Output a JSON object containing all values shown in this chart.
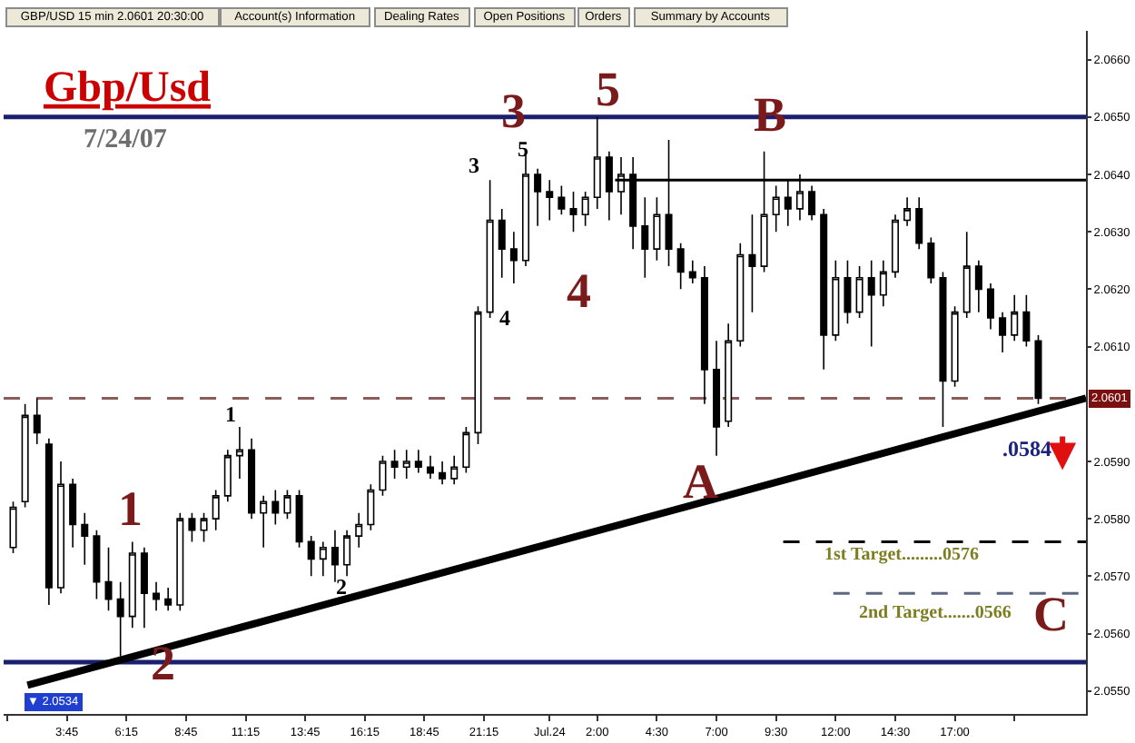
{
  "chart_data": {
    "type": "candlestick",
    "title": "Gbp/Usd",
    "subtitle": "7/24/07",
    "color": "#000000",
    "x": [
      "--07-23T01:30",
      "--07-23T02:00",
      "--07-23T02:30",
      "--07-23T03:00",
      "--07-23T03:30",
      "--07-23T04:00",
      "--07-23T04:30",
      "--07-23T05:00",
      "--07-23T05:30",
      "--07-23T06:00",
      "--07-23T06:30",
      "--07-23T07:00",
      "--07-23T07:30",
      "--07-23T08:00",
      "--07-23T08:30",
      "--07-23T09:00",
      "--07-23T09:30",
      "--07-23T10:00",
      "--07-23T10:30",
      "--07-23T11:00",
      "--07-23T11:30",
      "--07-23T12:00",
      "--07-23T12:30",
      "--07-23T13:00",
      "--07-23T13:30",
      "--07-23T14:00",
      "--07-23T14:30",
      "--07-23T15:00",
      "--07-23T15:30",
      "--07-23T16:00",
      "--07-23T16:30",
      "--07-23T17:00",
      "--07-23T17:30",
      "--07-23T18:00",
      "--07-23T18:30",
      "--07-23T19:00",
      "--07-23T19:30",
      "--07-23T20:00",
      "--07-23T20:30",
      "--07-23T21:00",
      "--07-23T21:30",
      "--07-23T22:00",
      "--07-23T22:30",
      "--07-23T23:00",
      "--07-23T23:30",
      "--07-24T00:00",
      "--07-24T00:30",
      "--07-24T01:00",
      "--07-24T01:30",
      "--07-24T02:00",
      "--07-24T02:30",
      "--07-24T03:00",
      "--07-24T03:30",
      "--07-24T04:00",
      "--07-24T04:30",
      "--07-24T05:00",
      "--07-24T05:30",
      "--07-24T06:00",
      "--07-24T06:30",
      "--07-24T07:00",
      "--07-24T07:30",
      "--07-24T08:00",
      "--07-24T08:30",
      "--07-24T09:00",
      "--07-24T09:30",
      "--07-24T10:00",
      "--07-24T10:30",
      "--07-24T11:00",
      "--07-24T11:30",
      "--07-24T12:00",
      "--07-24T12:30",
      "--07-24T13:00",
      "--07-24T13:30",
      "--07-24T14:00",
      "--07-24T14:30",
      "--07-24T15:00",
      "--07-24T15:30",
      "--07-24T16:00",
      "--07-24T16:30",
      "--07-24T17:00",
      "--07-24T17:30",
      "--07-24T18:00",
      "--07-24T18:30",
      "--07-24T19:00",
      "--07-24T19:30",
      "--07-24T20:00",
      "--07-24T20:30"
    ],
    "ohlc": [
      [
        2.0575,
        2.0583,
        2.0574,
        2.0582
      ],
      [
        2.0583,
        2.06,
        2.0582,
        2.0598
      ],
      [
        2.0598,
        2.0601,
        2.0593,
        2.0595
      ],
      [
        2.0593,
        2.0594,
        2.0565,
        2.0568
      ],
      [
        2.0568,
        2.059,
        2.0567,
        2.0586
      ],
      [
        2.0586,
        2.0587,
        2.0575,
        2.0579
      ],
      [
        2.0579,
        2.0581,
        2.0572,
        2.0577
      ],
      [
        2.0577,
        2.0578,
        2.0566,
        2.0569
      ],
      [
        2.0569,
        2.0575,
        2.0564,
        2.0566
      ],
      [
        2.0566,
        2.0569,
        2.0556,
        2.0563
      ],
      [
        2.0563,
        2.0576,
        2.0561,
        2.0574
      ],
      [
        2.0574,
        2.0575,
        2.0561,
        2.0567
      ],
      [
        2.0567,
        2.0569,
        2.0564,
        2.0566
      ],
      [
        2.0566,
        2.0568,
        2.0564,
        2.0565
      ],
      [
        2.0565,
        2.0581,
        2.0564,
        2.058
      ],
      [
        2.058,
        2.0581,
        2.0576,
        2.0578
      ],
      [
        2.0578,
        2.0581,
        2.0576,
        2.058
      ],
      [
        2.058,
        2.0585,
        2.0578,
        2.0584
      ],
      [
        2.0584,
        2.0592,
        2.0583,
        2.0591
      ],
      [
        2.0591,
        2.0596,
        2.0587,
        2.0592
      ],
      [
        2.0592,
        2.0594,
        2.058,
        2.0581
      ],
      [
        2.0581,
        2.0584,
        2.0575,
        2.0583
      ],
      [
        2.0583,
        2.0585,
        2.0579,
        2.0581
      ],
      [
        2.0581,
        2.0585,
        2.058,
        2.0584
      ],
      [
        2.0584,
        2.0585,
        2.0575,
        2.0576
      ],
      [
        2.0576,
        2.0577,
        2.057,
        2.0573
      ],
      [
        2.0573,
        2.0576,
        2.057,
        2.0575
      ],
      [
        2.0575,
        2.0578,
        2.0569,
        2.0572
      ],
      [
        2.0572,
        2.0578,
        2.057,
        2.0577
      ],
      [
        2.0577,
        2.0581,
        2.0575,
        2.0579
      ],
      [
        2.0579,
        2.0586,
        2.0578,
        2.0585
      ],
      [
        2.0585,
        2.0591,
        2.0584,
        2.059
      ],
      [
        2.059,
        2.0592,
        2.0587,
        2.0589
      ],
      [
        2.0589,
        2.0592,
        2.0587,
        2.059
      ],
      [
        2.059,
        2.0592,
        2.0588,
        2.0589
      ],
      [
        2.0589,
        2.0591,
        2.0587,
        2.0588
      ],
      [
        2.0588,
        2.059,
        2.0586,
        2.0587
      ],
      [
        2.0587,
        2.0591,
        2.0586,
        2.0589
      ],
      [
        2.0589,
        2.0596,
        2.0588,
        2.0595
      ],
      [
        2.0595,
        2.0617,
        2.0593,
        2.0616
      ],
      [
        2.0616,
        2.0639,
        2.0615,
        2.0632
      ],
      [
        2.0632,
        2.0634,
        2.0622,
        2.0627
      ],
      [
        2.0627,
        2.063,
        2.0621,
        2.0625
      ],
      [
        2.0625,
        2.0644,
        2.0624,
        2.064
      ],
      [
        2.064,
        2.0641,
        2.0631,
        2.0637
      ],
      [
        2.0637,
        2.0639,
        2.0632,
        2.0636
      ],
      [
        2.0636,
        2.0638,
        2.0633,
        2.0634
      ],
      [
        2.0634,
        2.0637,
        2.063,
        2.0633
      ],
      [
        2.0633,
        2.0637,
        2.0631,
        2.0636
      ],
      [
        2.0636,
        2.065,
        2.0634,
        2.0643
      ],
      [
        2.0643,
        2.0644,
        2.0632,
        2.0637
      ],
      [
        2.0637,
        2.0643,
        2.0633,
        2.064
      ],
      [
        2.064,
        2.0643,
        2.0627,
        2.0631
      ],
      [
        2.0631,
        2.0636,
        2.0622,
        2.0627
      ],
      [
        2.0627,
        2.0636,
        2.0625,
        2.0633
      ],
      [
        2.0633,
        2.0646,
        2.0624,
        2.0627
      ],
      [
        2.0627,
        2.0628,
        2.062,
        2.0623
      ],
      [
        2.0623,
        2.0625,
        2.0621,
        2.0622
      ],
      [
        2.0622,
        2.0624,
        2.06,
        2.0606
      ],
      [
        2.0606,
        2.0611,
        2.0591,
        2.0596
      ],
      [
        2.0597,
        2.0614,
        2.0596,
        2.0611
      ],
      [
        2.0611,
        2.0628,
        2.061,
        2.0626
      ],
      [
        2.0626,
        2.0633,
        2.0616,
        2.0624
      ],
      [
        2.0624,
        2.0644,
        2.0623,
        2.0633
      ],
      [
        2.0633,
        2.0638,
        2.063,
        2.0636
      ],
      [
        2.0636,
        2.0639,
        2.0631,
        2.0634
      ],
      [
        2.0634,
        2.064,
        2.0632,
        2.0637
      ],
      [
        2.0637,
        2.0638,
        2.0632,
        2.0633
      ],
      [
        2.0633,
        2.0634,
        2.0606,
        2.0612
      ],
      [
        2.0612,
        2.0625,
        2.0611,
        2.0622
      ],
      [
        2.0622,
        2.0625,
        2.0614,
        2.0616
      ],
      [
        2.0616,
        2.0624,
        2.0615,
        2.0622
      ],
      [
        2.0622,
        2.0625,
        2.061,
        2.0619
      ],
      [
        2.0619,
        2.0625,
        2.0617,
        2.0623
      ],
      [
        2.0623,
        2.0633,
        2.0622,
        2.0632
      ],
      [
        2.0632,
        2.0636,
        2.0631,
        2.0634
      ],
      [
        2.0634,
        2.0636,
        2.0627,
        2.0628
      ],
      [
        2.0628,
        2.0629,
        2.0621,
        2.0622
      ],
      [
        2.0622,
        2.0623,
        2.0596,
        2.0604
      ],
      [
        2.0604,
        2.0617,
        2.0603,
        2.0616
      ],
      [
        2.0616,
        2.063,
        2.0615,
        2.0624
      ],
      [
        2.0624,
        2.0625,
        2.0616,
        2.062
      ],
      [
        2.062,
        2.0621,
        2.0613,
        2.0615
      ],
      [
        2.0615,
        2.0616,
        2.0609,
        2.0612
      ],
      [
        2.0612,
        2.0619,
        2.0611,
        2.0616
      ],
      [
        2.0616,
        2.0619,
        2.061,
        2.0611
      ],
      [
        2.0611,
        2.0612,
        2.06,
        2.0601
      ]
    ],
    "series": [
      {
        "type": "line",
        "color": "#000000",
        "line_style": "solid",
        "x": [
          "--07-23T02:06",
          "--07-24T22:30"
        ],
        "values": [
          2.0551,
          2.0601
        ]
      },
      {
        "type": "line",
        "color": "#000000",
        "line_style": "solid",
        "x": [
          "--07-24T02:45",
          "--07-24T22:30"
        ],
        "values": [
          2.0639,
          2.0639
        ]
      },
      {
        "type": "line",
        "color": "#000000",
        "line_style": "dashed",
        "x": [
          "--07-24T09:48",
          "--07-24T22:30"
        ],
        "values": [
          2.0576,
          2.0576
        ]
      },
      {
        "type": "line",
        "color": "#5c6780",
        "line_style": "dashed",
        "x": [
          "--07-24T11:54",
          "--07-24T22:30"
        ],
        "values": [
          2.0567,
          2.0567
        ]
      }
    ],
    "ref_lines": [
      {
        "axis": "y",
        "value": 2.065,
        "color": "#1a1f6e"
      },
      {
        "axis": "y",
        "value": 2.0555,
        "color": "#1a1f6e"
      },
      {
        "axis": "y",
        "value": 2.0601,
        "label": "2.0601",
        "color": "#8a5c5c",
        "line_style": "dashed"
      }
    ],
    "xlim": [
      "--07-23T01:06",
      "--07-24T22:30"
    ],
    "xticks": [
      {
        "value": "--07-23T01:15",
        "label": null
      },
      {
        "value": "--07-23T03:45",
        "label": "3:45"
      },
      {
        "value": "--07-23T06:15",
        "label": "6:15"
      },
      {
        "value": "--07-23T08:45",
        "label": "8:45"
      },
      {
        "value": "--07-23T11:15",
        "label": "11:15"
      },
      {
        "value": "--07-23T13:45",
        "label": "13:45"
      },
      {
        "value": "--07-23T16:15",
        "label": "16:15"
      },
      {
        "value": "--07-23T18:45",
        "label": "18:45"
      },
      {
        "value": "--07-23T21:15",
        "label": "21:15"
      },
      {
        "value": "--07-24T00:00",
        "label": "Jul.24"
      },
      {
        "value": "--07-24T02:00",
        "label": "2:00"
      },
      {
        "value": "--07-24T04:30",
        "label": "4:30"
      },
      {
        "value": "--07-24T07:00",
        "label": "7:00"
      },
      {
        "value": "--07-24T09:30",
        "label": "9:30"
      },
      {
        "value": "--07-24T12:00",
        "label": "12:00"
      },
      {
        "value": "--07-24T14:30",
        "label": "14:30"
      },
      {
        "value": "--07-24T17:00",
        "label": "17:00"
      },
      {
        "value": "--07-24T19:30",
        "label": null
      }
    ],
    "ylim": [
      2.0546,
      2.0665
    ],
    "yticks": [
      {
        "value": 2.055,
        "label": "2.0550"
      },
      {
        "value": 2.056,
        "label": "2.0560"
      },
      {
        "value": 2.057,
        "label": "2.0570"
      },
      {
        "value": 2.058,
        "label": "2.0580"
      },
      {
        "value": 2.059,
        "label": "2.0590"
      },
      {
        "value": 2.061,
        "label": "2.0610"
      },
      {
        "value": 2.062,
        "label": "2.0620"
      },
      {
        "value": 2.063,
        "label": "2.0630"
      },
      {
        "value": 2.064,
        "label": "2.0640"
      },
      {
        "value": 2.065,
        "label": "2.0650"
      },
      {
        "value": 2.066,
        "label": "2.0660"
      }
    ],
    "annotations": [
      "GBP/USD 15 min 2.0601 20:30:00",
      "Account(s) Information",
      "Dealing Rates",
      "Open Positions",
      "Orders",
      "Summary by Accounts",
      "▼ 2.0534",
      "1",
      "2",
      "3",
      "4",
      "5",
      "A",
      "B",
      "C",
      "1",
      "2",
      "3",
      "4",
      "5",
      ".0584",
      "1st Target.........0576",
      "2nd Target.......0566"
    ]
  }
}
